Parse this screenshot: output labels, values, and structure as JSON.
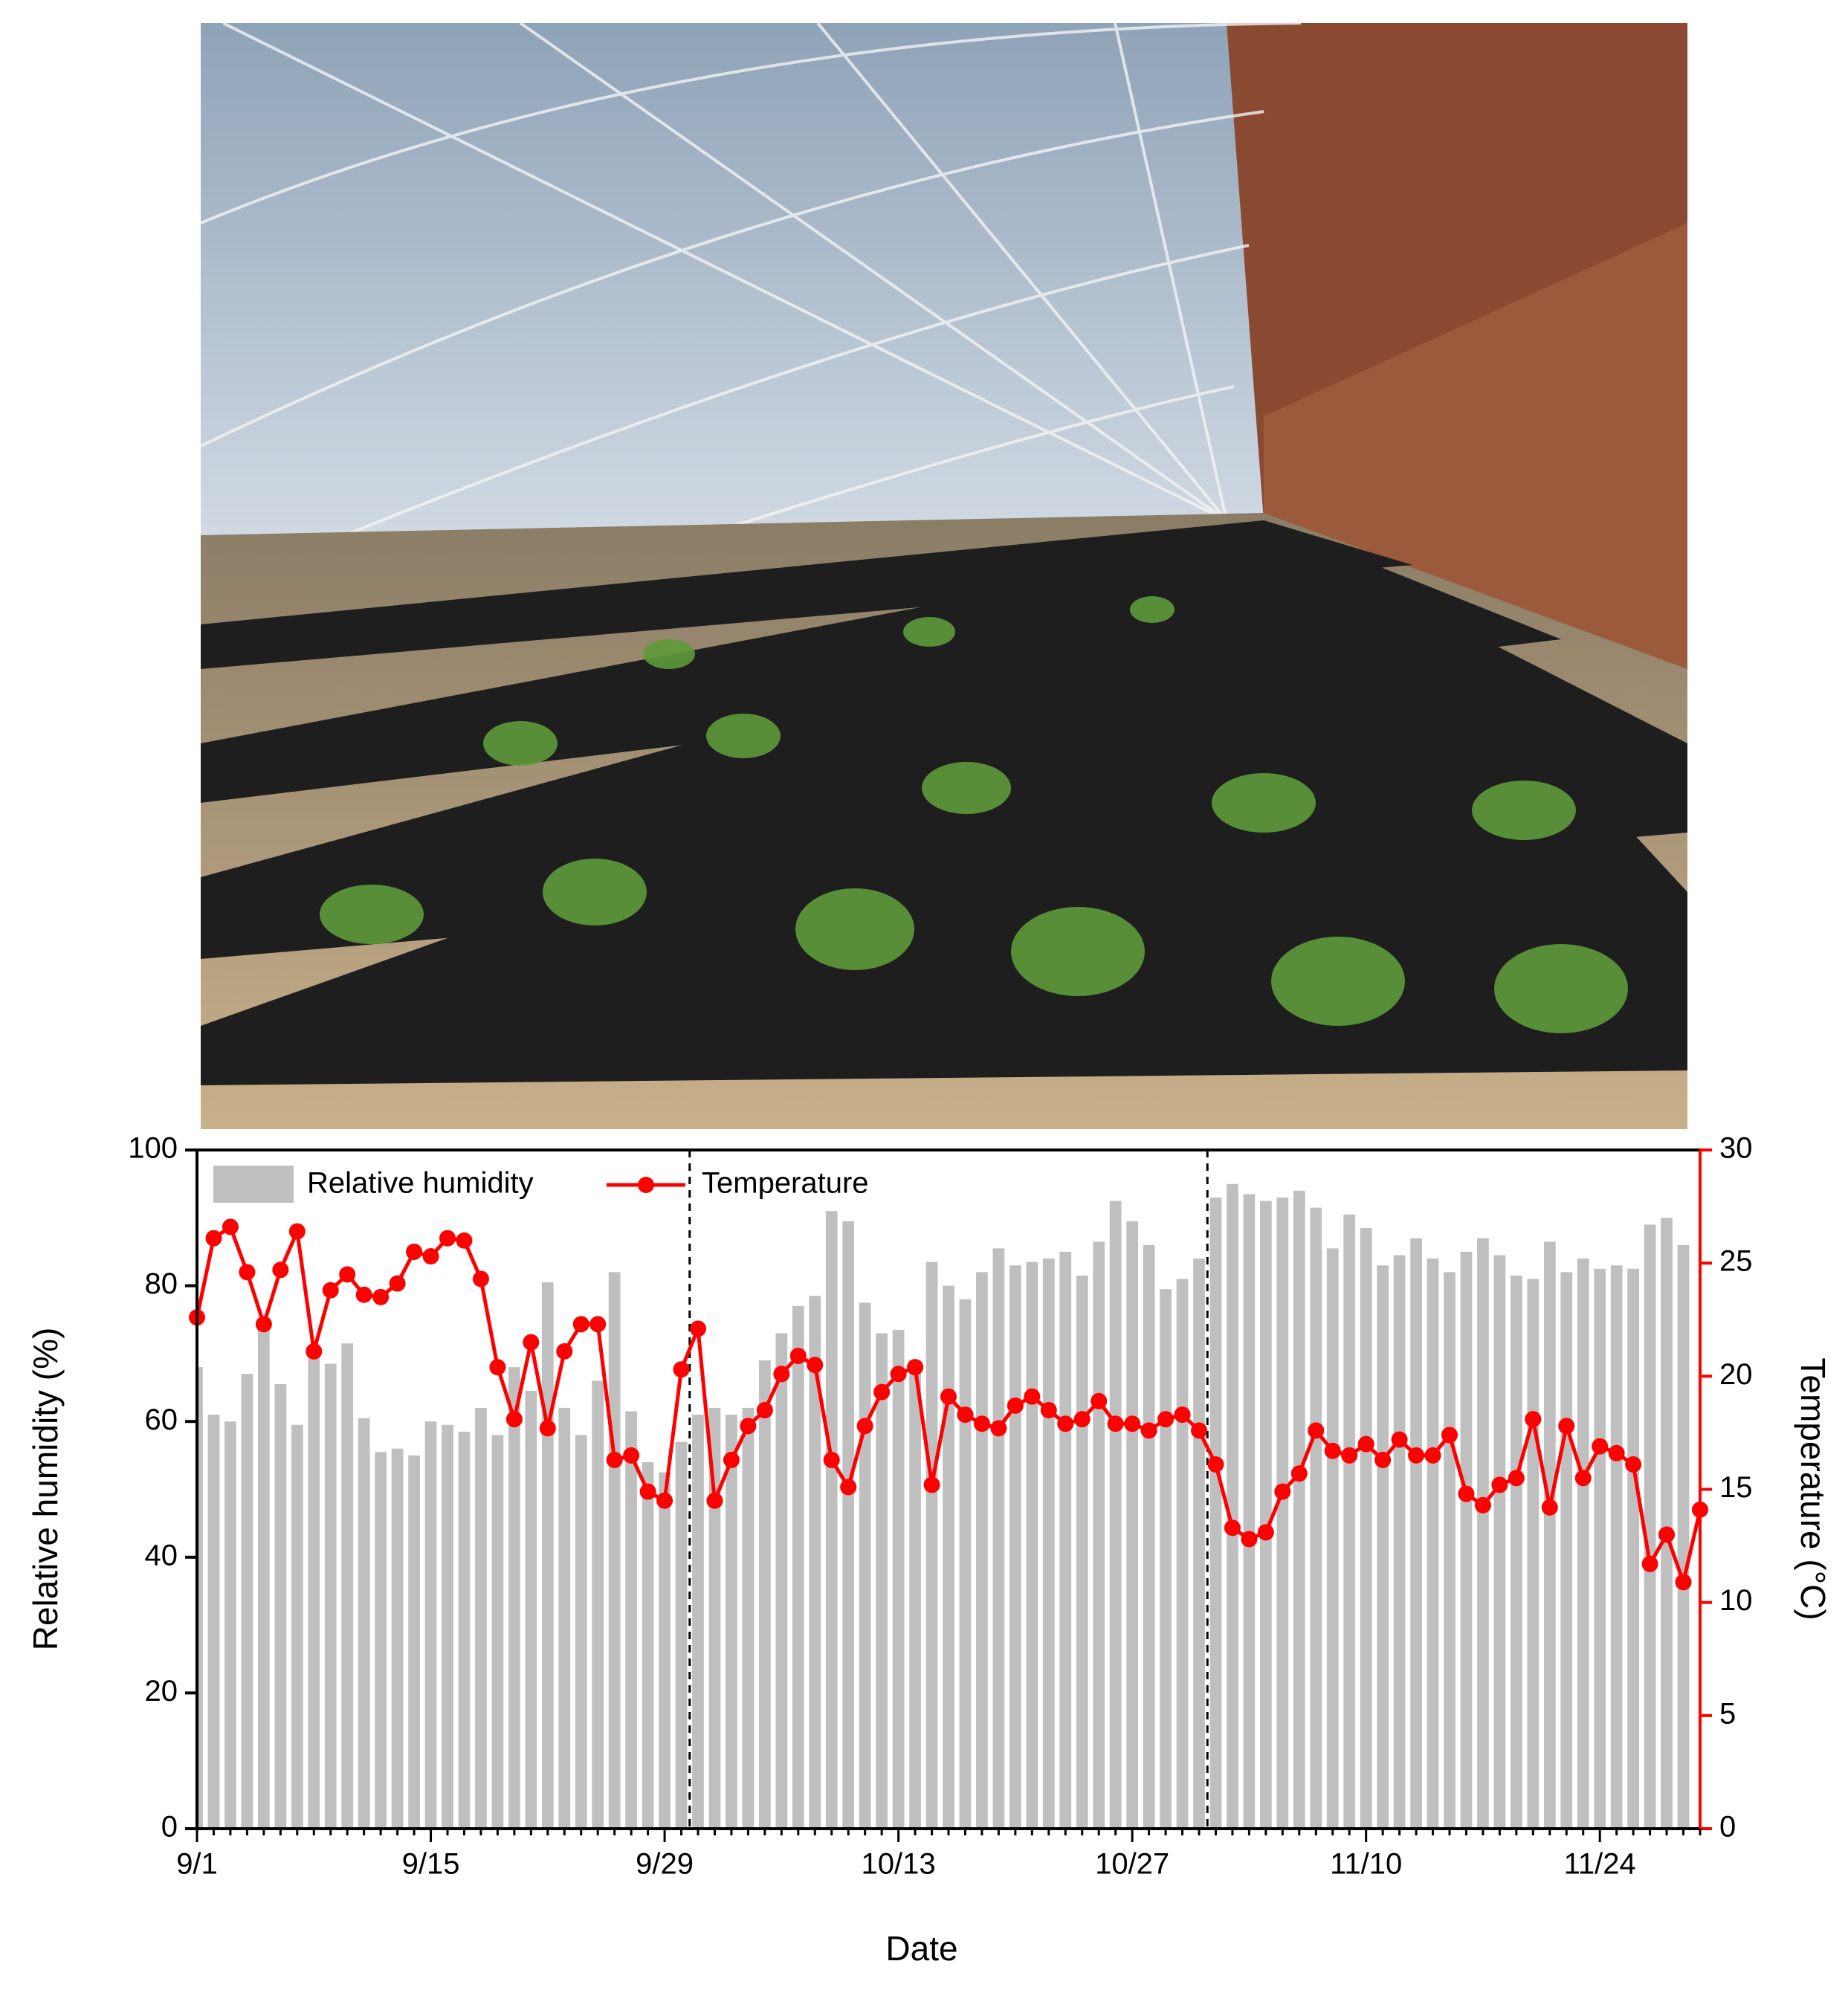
{
  "chart_data": {
    "type": "bar_line",
    "xlabel": "Date",
    "ylabel": "Relative humidity (%)",
    "y2label": "Temperature (°C)",
    "categories": [
      "9/1",
      null,
      null,
      null,
      null,
      null,
      null,
      null,
      null,
      null,
      null,
      null,
      null,
      null,
      "9/15",
      null,
      null,
      null,
      null,
      null,
      null,
      null,
      null,
      null,
      null,
      null,
      null,
      null,
      "9/29",
      null,
      null,
      null,
      null,
      null,
      null,
      null,
      null,
      null,
      null,
      null,
      null,
      null,
      "10/13",
      null,
      null,
      null,
      null,
      null,
      null,
      null,
      null,
      null,
      null,
      null,
      null,
      null,
      "10/27",
      null,
      null,
      null,
      null,
      null,
      null,
      null,
      null,
      null,
      null,
      null,
      null,
      null,
      "11/10",
      null,
      null,
      null,
      null,
      null,
      null,
      null,
      null,
      null,
      null,
      null,
      null,
      null,
      "11/24",
      null,
      null,
      null,
      null,
      null,
      null
    ],
    "series": [
      {
        "name": "Relative humidity",
        "type": "bar",
        "color": "#bfbfbf",
        "values": [
          68,
          61,
          60,
          67,
          74,
          65.5,
          59.5,
          71,
          68.5,
          71.5,
          60.5,
          55.5,
          56,
          55,
          60,
          59.5,
          58.5,
          62,
          58,
          68,
          64.5,
          80.5,
          62,
          58,
          66,
          82,
          61.5,
          54,
          52.5,
          57,
          61,
          62,
          61,
          62,
          69,
          73,
          77,
          78.5,
          91,
          89.5,
          77.5,
          73,
          73.5,
          69,
          83.5,
          80,
          78,
          82,
          85.5,
          83,
          83.5,
          84,
          85,
          81.5,
          86.5,
          92.5,
          89.5,
          86,
          79.5,
          81,
          84,
          93,
          95,
          93.5,
          92.5,
          93,
          94,
          91.5,
          85.5,
          90.5,
          88.5,
          83,
          84.5,
          87,
          84,
          82,
          85,
          87,
          84.5,
          81.5,
          81,
          86.5,
          82,
          84,
          82.5,
          83,
          82.5,
          89,
          90,
          86,
          null
        ]
      },
      {
        "name": "Temperature",
        "type": "line",
        "axis": "y2",
        "color": "#ff0000",
        "values": [
          22.6,
          26.1,
          26.6,
          24.6,
          22.3,
          24.7,
          26.4,
          21.1,
          23.8,
          24.5,
          23.6,
          23.5,
          24.1,
          25.5,
          25.3,
          26.1,
          26.0,
          24.3,
          20.4,
          18.1,
          21.5,
          17.7,
          21.1,
          22.3,
          22.3,
          16.3,
          16.5,
          14.9,
          14.5,
          20.3,
          22.1,
          14.5,
          16.3,
          17.8,
          18.5,
          20.1,
          20.9,
          20.5,
          16.3,
          15.1,
          17.8,
          19.3,
          20.1,
          20.4,
          15.2,
          19.1,
          18.3,
          17.9,
          17.7,
          18.7,
          19.1,
          18.5,
          17.9,
          18.1,
          18.9,
          17.9,
          17.9,
          17.6,
          18.1,
          18.3,
          17.6,
          16.1,
          13.3,
          12.8,
          13.1,
          14.9,
          15.7,
          17.6,
          16.7,
          16.5,
          17.0,
          16.3,
          17.2,
          16.5,
          16.5,
          17.4,
          14.8,
          14.3,
          15.2,
          15.5,
          18.1,
          14.2,
          17.8,
          15.5,
          16.9,
          16.6,
          16.1,
          11.7,
          13.0,
          10.9,
          14.1
        ]
      }
    ],
    "ylim": [
      0,
      100
    ],
    "yticks": [
      0,
      20,
      40,
      60,
      80,
      100
    ],
    "y2lim": [
      0,
      30
    ],
    "y2ticks": [
      0,
      5,
      10,
      15,
      20,
      25,
      30
    ],
    "vlines": [
      29.5,
      60.5
    ],
    "legend": "upper left"
  }
}
